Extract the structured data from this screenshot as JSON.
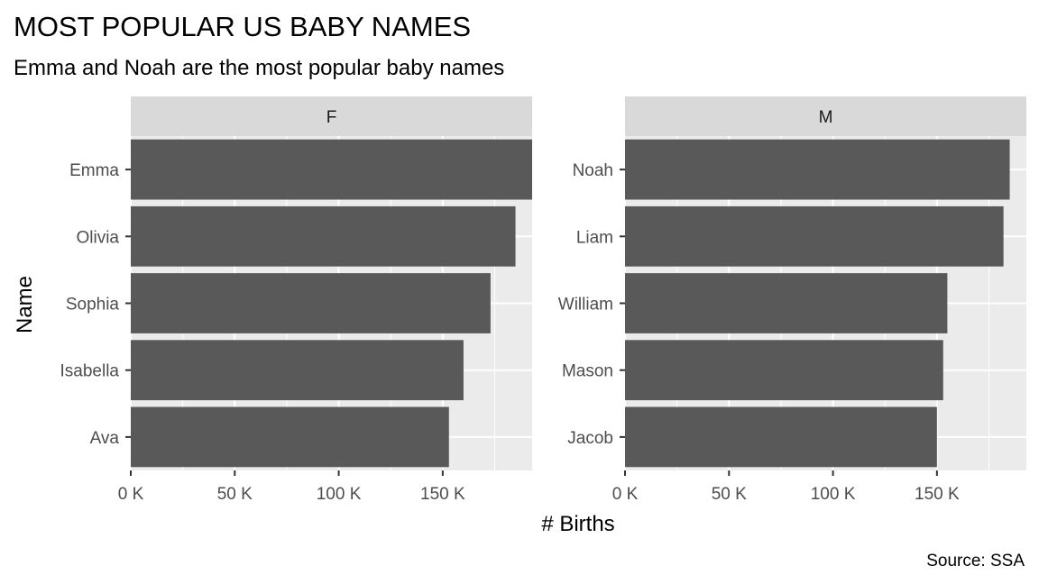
{
  "chart_data": {
    "type": "bar",
    "orientation": "horizontal",
    "title": "MOST POPULAR US BABY NAMES",
    "subtitle": "Emma and Noah are the most popular baby names",
    "xlabel": "# Births",
    "ylabel": "Name",
    "caption": "Source: SSA",
    "xlim": [
      0,
      193000
    ],
    "x_ticks": [
      0,
      50000,
      100000,
      150000
    ],
    "x_tick_labels": [
      "0 K",
      "50 K",
      "100 K",
      "150 K"
    ],
    "grid": true,
    "legend": "none",
    "bar_color": "#595959",
    "panel_background": "#ebebeb",
    "strip_background": "#d9d9d9",
    "facets": [
      {
        "label": "F",
        "categories": [
          "Emma",
          "Olivia",
          "Sophia",
          "Isabella",
          "Ava"
        ],
        "values": [
          193000,
          185000,
          173000,
          160000,
          153000
        ]
      },
      {
        "label": "M",
        "categories": [
          "Noah",
          "Liam",
          "William",
          "Mason",
          "Jacob"
        ],
        "values": [
          185000,
          182000,
          155000,
          153000,
          150000
        ]
      }
    ]
  }
}
